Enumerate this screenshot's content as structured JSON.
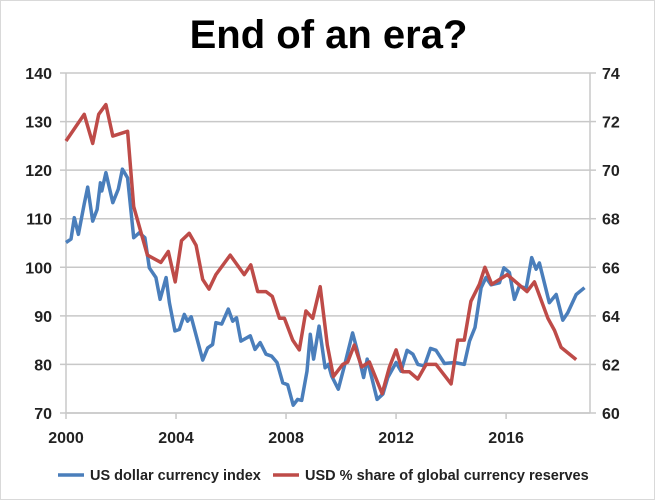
{
  "chart_data": {
    "type": "line",
    "title": "End of an era?",
    "xlim": [
      2000,
      2019.05
    ],
    "x_ticks": [
      "2000",
      "2004",
      "2008",
      "2012",
      "2016"
    ],
    "y_left": {
      "lim": [
        70,
        140
      ],
      "ticks": [
        "70",
        "80",
        "90",
        "100",
        "110",
        "120",
        "130",
        "140"
      ]
    },
    "y_right": {
      "lim": [
        60,
        74
      ],
      "ticks": [
        "60",
        "62",
        "64",
        "66",
        "68",
        "70",
        "72",
        "74"
      ]
    },
    "grid": true,
    "legend_position": "bottom",
    "series": [
      {
        "name": "US dollar currency index",
        "axis": "left",
        "color": "#4a7ebb",
        "x": [
          2000.0,
          2000.18,
          2000.3,
          2000.45,
          2000.66,
          2000.79,
          2000.97,
          2001.13,
          2001.25,
          2001.3,
          2001.45,
          2001.7,
          2001.9,
          2002.05,
          2002.24,
          2002.46,
          2002.66,
          2002.87,
          2003.03,
          2003.27,
          2003.42,
          2003.64,
          2003.76,
          2003.96,
          2004.12,
          2004.3,
          2004.42,
          2004.55,
          2004.97,
          2005.15,
          2005.33,
          2005.45,
          2005.66,
          2005.9,
          2006.06,
          2006.2,
          2006.36,
          2006.7,
          2006.87,
          2007.06,
          2007.27,
          2007.48,
          2007.67,
          2007.88,
          2008.06,
          2008.26,
          2008.42,
          2008.57,
          2008.76,
          2008.88,
          2009.0,
          2009.2,
          2009.42,
          2009.54,
          2009.66,
          2009.9,
          2010.12,
          2010.42,
          2010.58,
          2010.82,
          2010.95,
          2011.31,
          2011.52,
          2011.7,
          2012.0,
          2012.18,
          2012.4,
          2012.61,
          2012.79,
          2013.03,
          2013.25,
          2013.45,
          2013.76,
          2014.12,
          2014.48,
          2014.67,
          2014.87,
          2015.09,
          2015.27,
          2015.45,
          2015.76,
          2015.92,
          2016.12,
          2016.3,
          2016.48,
          2016.73,
          2016.93,
          2017.09,
          2017.21,
          2017.57,
          2017.82,
          2018.06,
          2018.24,
          2018.55,
          2018.85
        ],
        "y": [
          105.1,
          105.8,
          110.2,
          106.8,
          113.0,
          116.5,
          109.5,
          111.9,
          117.4,
          115.7,
          119.5,
          113.3,
          116.1,
          120.2,
          118.4,
          106.1,
          107.1,
          106.1,
          99.9,
          97.9,
          93.4,
          97.9,
          92.7,
          86.9,
          87.2,
          90.3,
          88.9,
          89.8,
          80.9,
          83.4,
          84.1,
          88.6,
          88.3,
          91.4,
          88.9,
          89.6,
          84.8,
          85.9,
          83.1,
          84.5,
          82.1,
          81.7,
          80.4,
          76.2,
          75.8,
          71.6,
          72.8,
          72.6,
          78.6,
          86.2,
          81.1,
          87.9,
          79.3,
          80.0,
          77.6,
          74.9,
          79.7,
          86.5,
          83.1,
          77.3,
          81.1,
          72.8,
          73.9,
          77.3,
          80.4,
          78.6,
          82.9,
          82.1,
          80.0,
          79.7,
          83.3,
          82.9,
          80.2,
          80.4,
          80.0,
          84.8,
          87.6,
          95.8,
          97.9,
          96.4,
          96.8,
          99.9,
          98.9,
          93.4,
          96.1,
          95.7,
          102.0,
          99.6,
          100.9,
          92.7,
          94.4,
          89.1,
          90.6,
          94.4,
          95.8
        ]
      },
      {
        "name": "USD % share of global currency reserves",
        "axis": "right",
        "color": "#be4b48",
        "x": [
          2000.0,
          2000.66,
          2000.97,
          2001.19,
          2001.45,
          2001.7,
          2002.24,
          2002.46,
          2002.96,
          2003.45,
          2003.72,
          2003.97,
          2004.2,
          2004.48,
          2004.73,
          2004.97,
          2005.2,
          2005.45,
          2005.97,
          2006.48,
          2006.72,
          2006.97,
          2007.27,
          2007.5,
          2007.76,
          2007.94,
          2008.24,
          2008.48,
          2008.72,
          2008.97,
          2009.24,
          2009.5,
          2009.72,
          2010.06,
          2010.24,
          2010.48,
          2010.75,
          2011.03,
          2011.49,
          2011.76,
          2012.0,
          2012.24,
          2012.48,
          2012.79,
          2013.09,
          2013.45,
          2014.0,
          2014.24,
          2014.48,
          2014.72,
          2015.03,
          2015.23,
          2015.48,
          2016.04,
          2016.76,
          2017.03,
          2017.52,
          2017.76,
          2018.0,
          2018.55
        ],
        "y": [
          71.2,
          72.3,
          71.1,
          72.3,
          72.7,
          71.4,
          71.6,
          68.5,
          66.5,
          66.2,
          66.65,
          65.4,
          67.1,
          67.4,
          66.9,
          65.5,
          65.1,
          65.7,
          66.5,
          65.7,
          66.1,
          65.0,
          65.0,
          64.8,
          63.9,
          63.9,
          63.0,
          62.6,
          64.2,
          63.9,
          65.2,
          62.8,
          61.5,
          62.0,
          62.1,
          62.8,
          61.9,
          62.1,
          60.8,
          61.9,
          62.6,
          61.7,
          61.7,
          61.4,
          62.0,
          62.0,
          61.2,
          63.0,
          63.0,
          64.6,
          65.3,
          66.0,
          65.3,
          65.7,
          65.0,
          65.4,
          63.9,
          63.4,
          62.7,
          62.2
        ]
      }
    ]
  }
}
